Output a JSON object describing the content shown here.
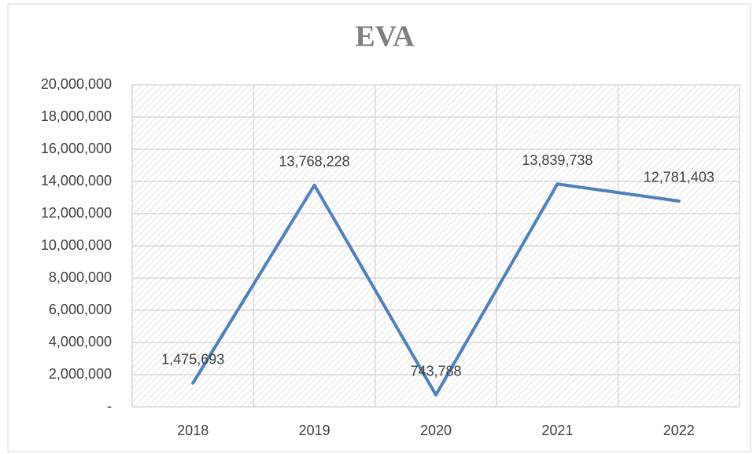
{
  "chart_data": {
    "type": "line",
    "title": "EVA",
    "categories": [
      "2018",
      "2019",
      "2020",
      "2021",
      "2022"
    ],
    "series": [
      {
        "name": "EVA",
        "color": "#4f81bd",
        "values": [
          1475693,
          13768228,
          743788,
          13839738,
          12781403
        ],
        "value_labels": [
          "1,475,693",
          "13,768,228",
          "743,788",
          "13,839,738",
          "12,781,403"
        ]
      }
    ],
    "ylim": [
      0,
      20000000
    ],
    "yticks": [
      {
        "value": 0,
        "label": "-"
      },
      {
        "value": 2000000,
        "label": "2,000,000"
      },
      {
        "value": 4000000,
        "label": "4,000,000"
      },
      {
        "value": 6000000,
        "label": "6,000,000"
      },
      {
        "value": 8000000,
        "label": "8,000,000"
      },
      {
        "value": 10000000,
        "label": "10,000,000"
      },
      {
        "value": 12000000,
        "label": "12,000,000"
      },
      {
        "value": 14000000,
        "label": "14,000,000"
      },
      {
        "value": 16000000,
        "label": "16,000,000"
      },
      {
        "value": 18000000,
        "label": "18,000,000"
      },
      {
        "value": 20000000,
        "label": "20,000,000"
      }
    ],
    "grid": true
  }
}
